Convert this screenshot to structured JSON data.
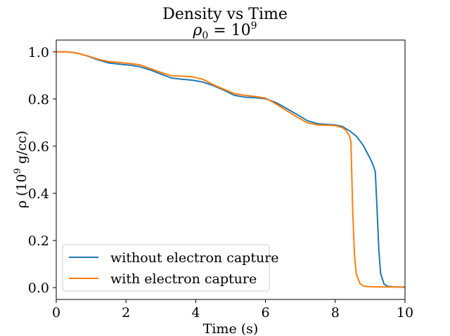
{
  "chart_data": {
    "type": "line",
    "title": "Density vs Time",
    "subtitle_base": "ρ",
    "subtitle_sub": "0",
    "subtitle_eq": " = 10",
    "subtitle_sup": "9",
    "xlabel": "Time (s)",
    "ylabel_pre": "ρ (10",
    "ylabel_sup": "9",
    "ylabel_post": " g/cc)",
    "xlim": [
      0,
      10
    ],
    "ylim": [
      -0.05,
      1.05
    ],
    "xticks": [
      0,
      2,
      4,
      6,
      8,
      10
    ],
    "yticks": [
      0.0,
      0.2,
      0.4,
      0.6,
      0.8,
      1.0
    ],
    "xtick_labels": [
      "0",
      "2",
      "4",
      "6",
      "8",
      "10"
    ],
    "ytick_labels": [
      "0.0",
      "0.2",
      "0.4",
      "0.6",
      "0.8",
      "1.0"
    ],
    "grid": false,
    "legend_position": "lower-left",
    "series": [
      {
        "name": "without electron capture",
        "color": "#1f77b4",
        "x": [
          0,
          0.3,
          0.6,
          0.9,
          1.2,
          1.5,
          1.8,
          2.1,
          2.4,
          2.7,
          3.0,
          3.3,
          3.6,
          3.9,
          4.2,
          4.5,
          4.8,
          5.1,
          5.4,
          5.7,
          6.0,
          6.3,
          6.6,
          6.9,
          7.2,
          7.5,
          7.8,
          8.0,
          8.2,
          8.4,
          8.6,
          8.8,
          9.0,
          9.1,
          9.15,
          9.2,
          9.25,
          9.3,
          9.4,
          9.5,
          9.7,
          10.0
        ],
        "y": [
          1.0,
          1.0,
          0.995,
          0.982,
          0.966,
          0.953,
          0.948,
          0.944,
          0.937,
          0.923,
          0.906,
          0.889,
          0.884,
          0.88,
          0.872,
          0.857,
          0.838,
          0.816,
          0.808,
          0.806,
          0.801,
          0.785,
          0.76,
          0.735,
          0.708,
          0.695,
          0.692,
          0.69,
          0.684,
          0.666,
          0.643,
          0.604,
          0.548,
          0.515,
          0.49,
          0.33,
          0.16,
          0.06,
          0.015,
          0.006,
          0.003,
          0.002
        ]
      },
      {
        "name": "with electron capture",
        "color": "#ff7f0e",
        "x": [
          0,
          0.3,
          0.6,
          0.9,
          1.2,
          1.5,
          1.8,
          2.1,
          2.4,
          2.7,
          3.0,
          3.3,
          3.6,
          3.9,
          4.2,
          4.5,
          4.8,
          5.1,
          5.4,
          5.7,
          6.0,
          6.3,
          6.6,
          6.9,
          7.2,
          7.5,
          7.8,
          8.0,
          8.2,
          8.3,
          8.4,
          8.45,
          8.5,
          8.55,
          8.6,
          8.7,
          8.8,
          9.0,
          9.3,
          9.6,
          10.0
        ],
        "y": [
          1.0,
          1.0,
          0.995,
          0.983,
          0.969,
          0.959,
          0.955,
          0.951,
          0.945,
          0.929,
          0.913,
          0.899,
          0.897,
          0.894,
          0.884,
          0.861,
          0.842,
          0.823,
          0.816,
          0.811,
          0.804,
          0.779,
          0.751,
          0.724,
          0.699,
          0.69,
          0.689,
          0.687,
          0.679,
          0.668,
          0.646,
          0.619,
          0.33,
          0.14,
          0.06,
          0.02,
          0.007,
          0.004,
          0.003,
          0.003,
          0.003
        ]
      }
    ]
  }
}
